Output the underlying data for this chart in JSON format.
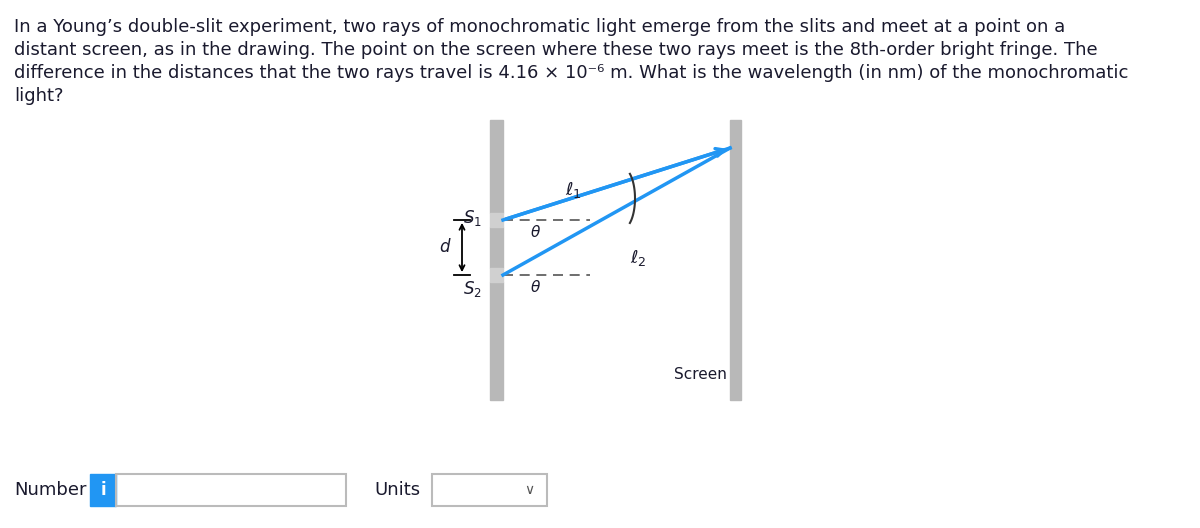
{
  "bg_color": "#ffffff",
  "text_color": "#1a1a2e",
  "slit_color": "#b8b8b8",
  "screen_color": "#b8b8b8",
  "ray_color": "#2196f3",
  "dashed_color": "#555555",
  "arrow_color": "#000000",
  "para_lines": [
    "In a Young’s double-slit experiment, two rays of monochromatic light emerge from the slits and meet at a point on a",
    "distant screen, as in the drawing. The point on the screen where these two rays meet is the 8th-order bright fringe. The",
    "difference in the distances that the two rays travel is 4.16 × 10⁻⁶ m. What is the wavelength (in nm) of the monochromatic",
    "light?"
  ],
  "number_label": "Number",
  "units_label": "Units",
  "i_color": "#2196f3"
}
